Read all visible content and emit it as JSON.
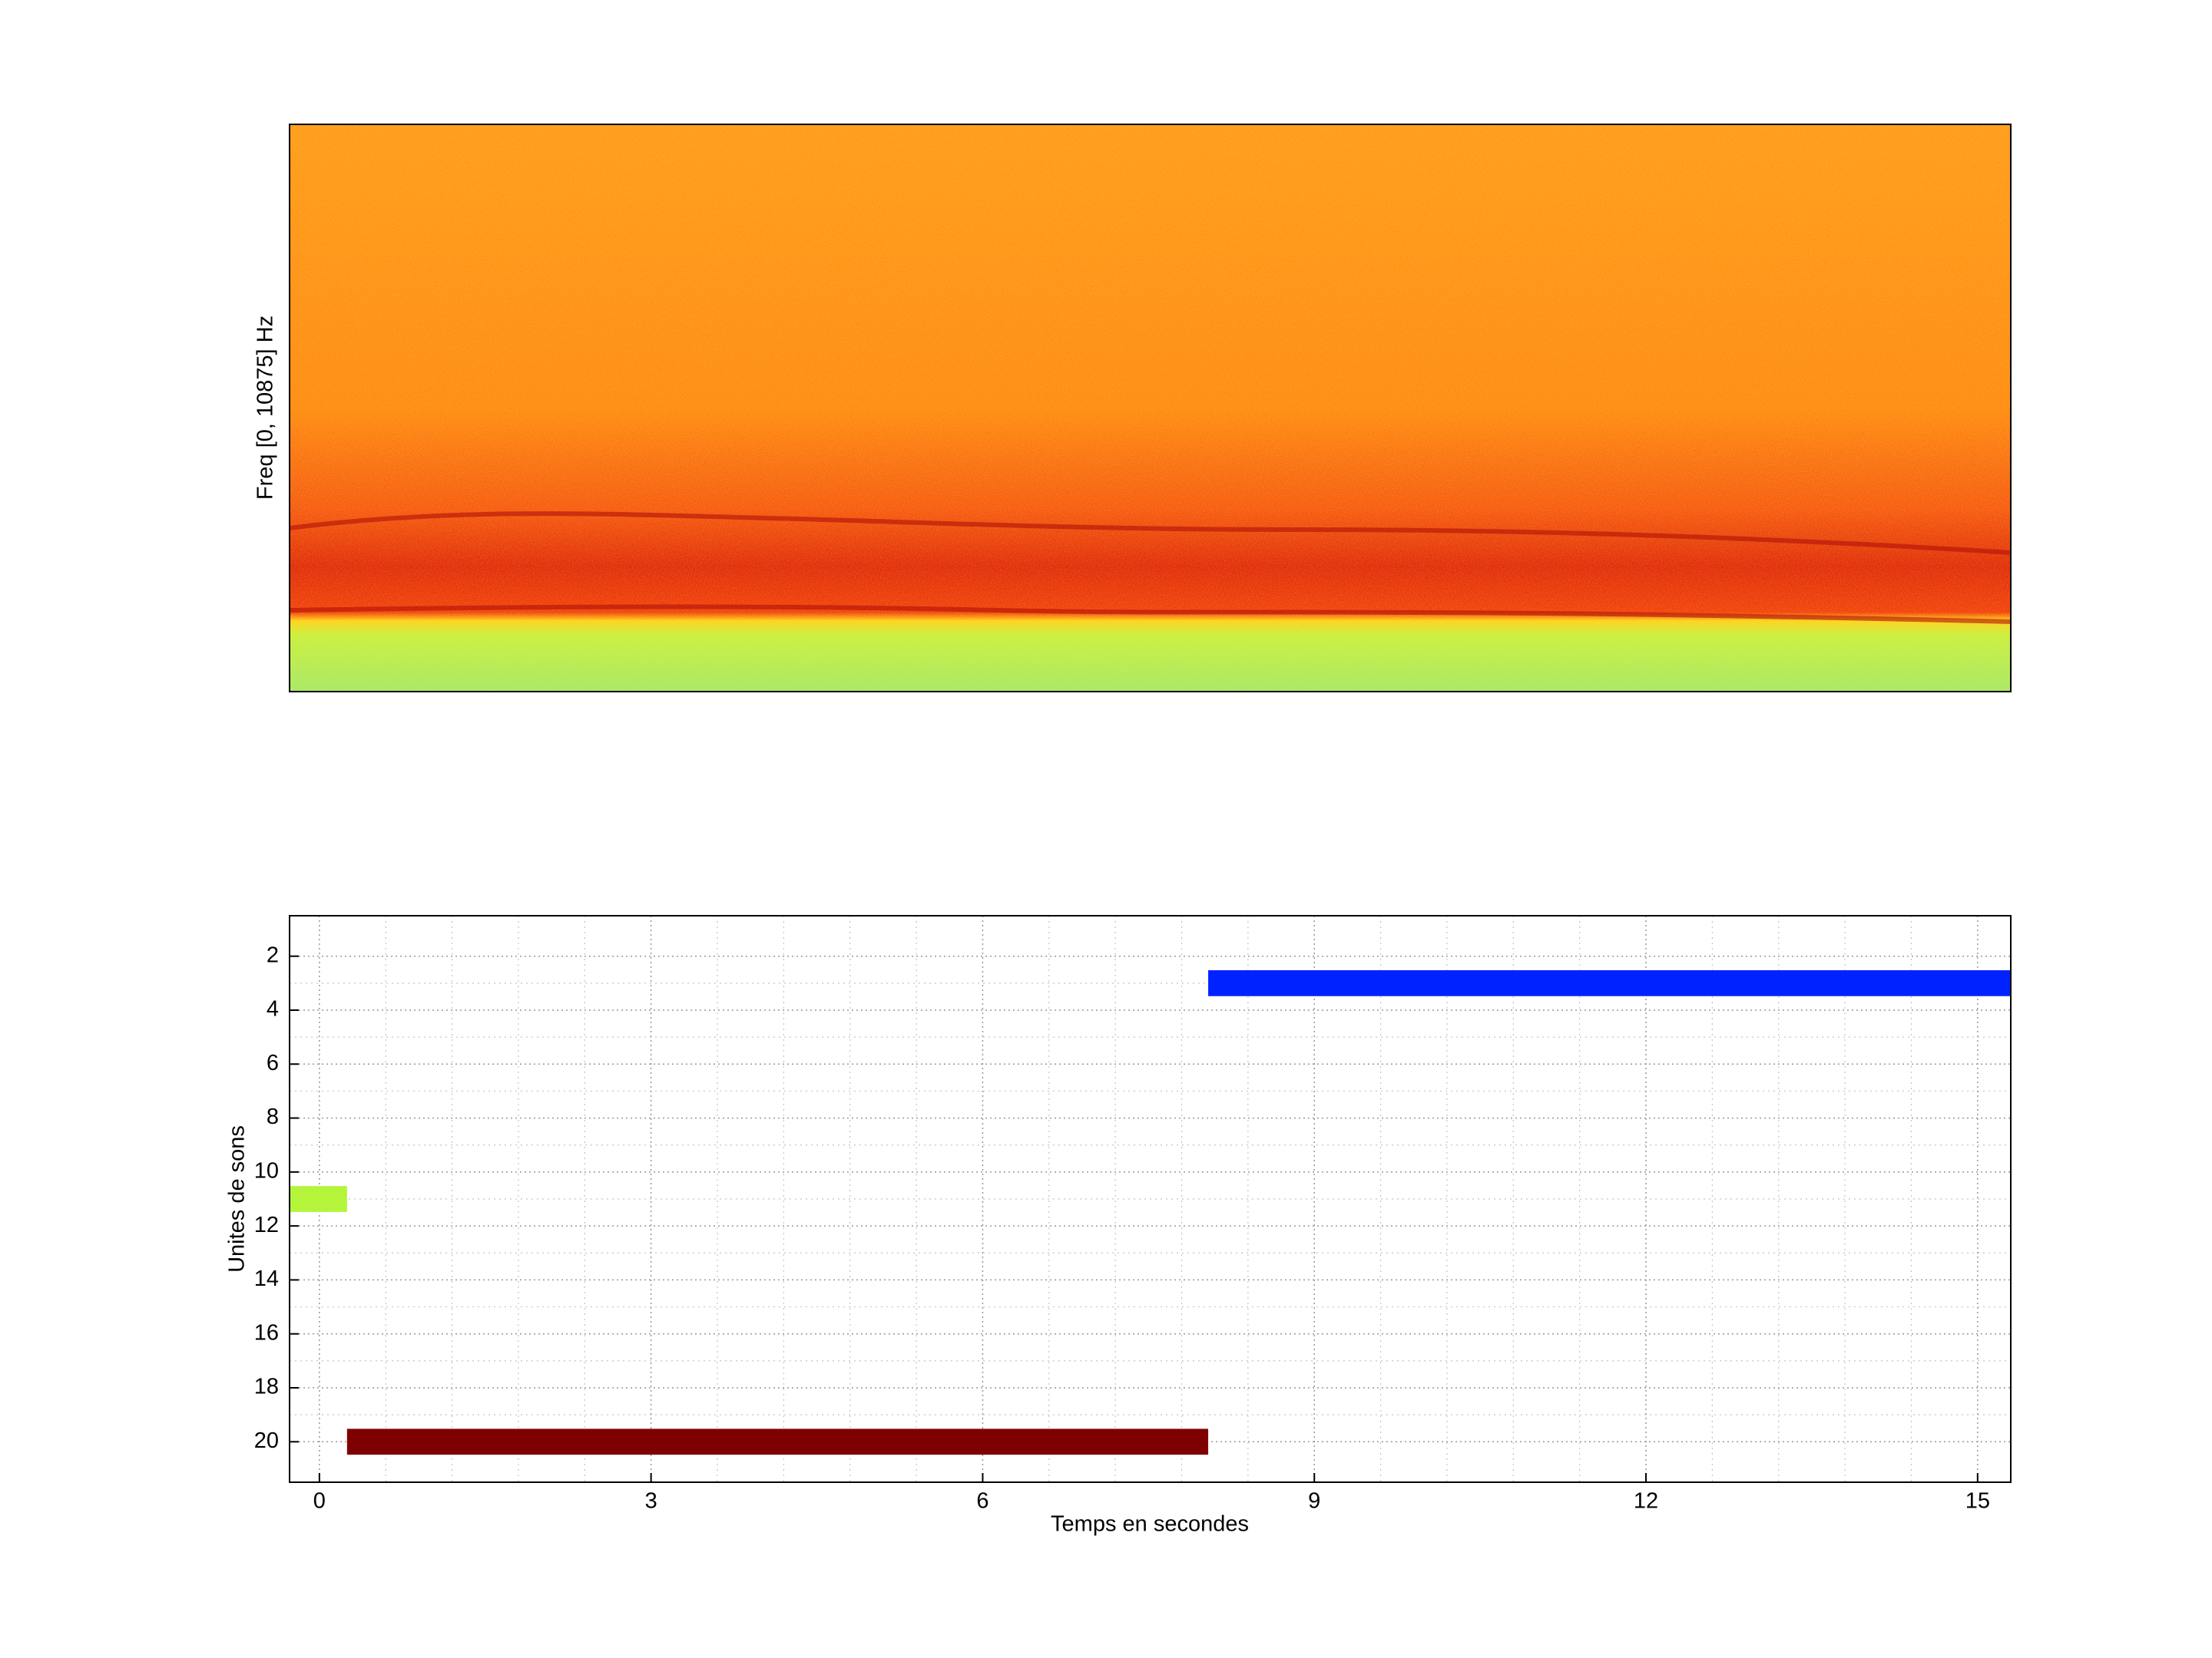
{
  "chart_data": [
    {
      "type": "spectrogram",
      "ylabel": "Freq [0, 10875] Hz"
    },
    {
      "type": "segment",
      "xlabel": "Temps en secondes",
      "ylabel": "Unites de sons",
      "xlim": [
        -0.27,
        15.3
      ],
      "ylim": [
        0.5,
        21.5
      ],
      "y_reversed": true,
      "xticks": [
        0,
        3,
        6,
        9,
        12,
        15
      ],
      "yticks": [
        2,
        4,
        6,
        8,
        10,
        12,
        14,
        16,
        18,
        20
      ],
      "grid": true,
      "minor_grid": true,
      "segments": [
        {
          "y": 11,
          "start": -0.27,
          "end": 0.25,
          "color": "#b4f53c"
        },
        {
          "y": 20,
          "start": 0.25,
          "end": 8.04,
          "color": "#7f0000"
        },
        {
          "y": 3,
          "start": 8.04,
          "end": 15.3,
          "color": "#0022ff"
        }
      ]
    }
  ]
}
